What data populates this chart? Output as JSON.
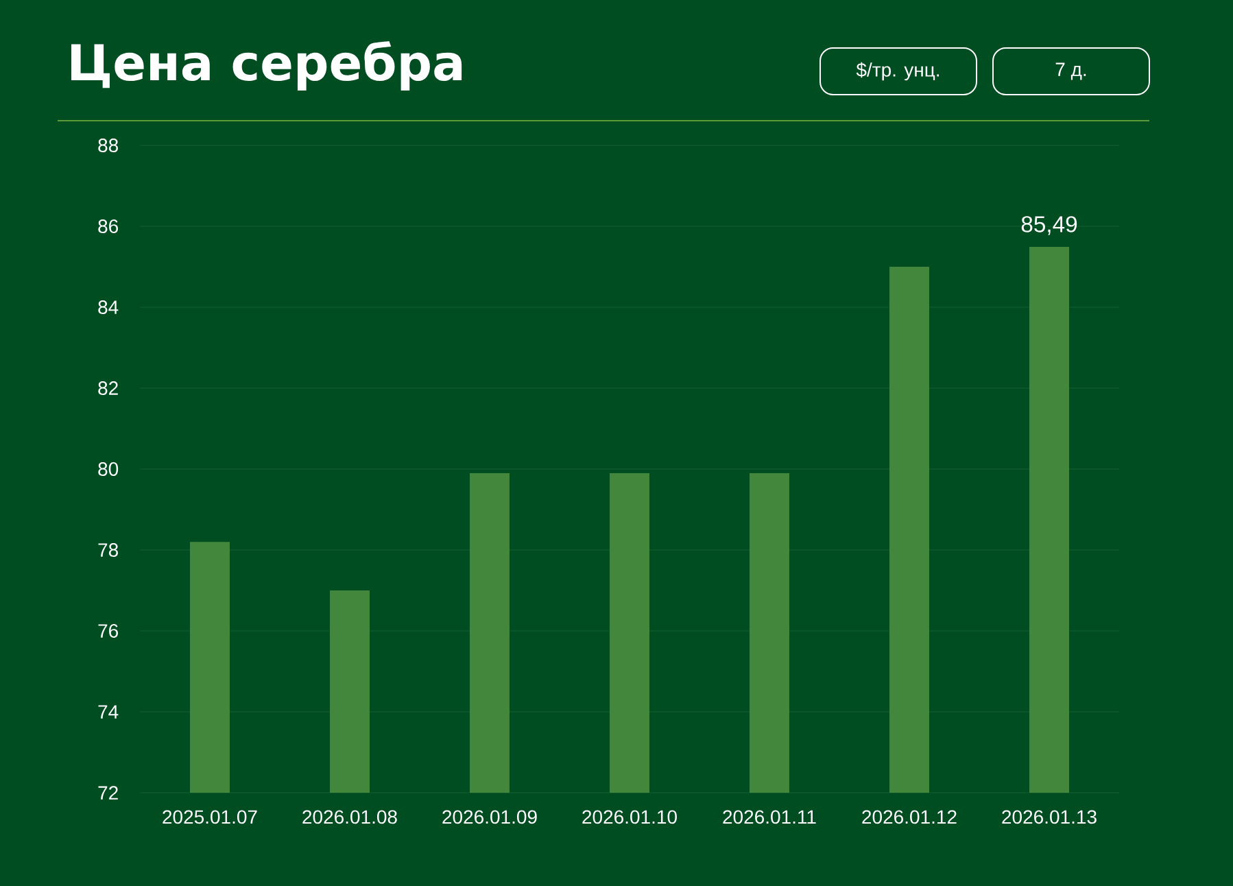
{
  "chart_data": {
    "type": "bar",
    "title": "Цена серебра",
    "annotations": [
      "$/тр. унц.",
      "7 д."
    ],
    "categories": [
      "2025.01.07",
      "2026.01.08",
      "2026.01.09",
      "2026.01.10",
      "2026.01.11",
      "2026.01.12",
      "2026.01.13"
    ],
    "values": [
      78.2,
      77.0,
      79.9,
      79.9,
      79.9,
      85.0,
      85.49
    ],
    "value_labels": [
      null,
      null,
      null,
      null,
      null,
      null,
      "85,49"
    ],
    "color": "#43873d",
    "ylim": [
      72,
      88
    ],
    "yticks": [
      72,
      74,
      76,
      78,
      80,
      82,
      84,
      86,
      88
    ],
    "grid": "y"
  }
}
